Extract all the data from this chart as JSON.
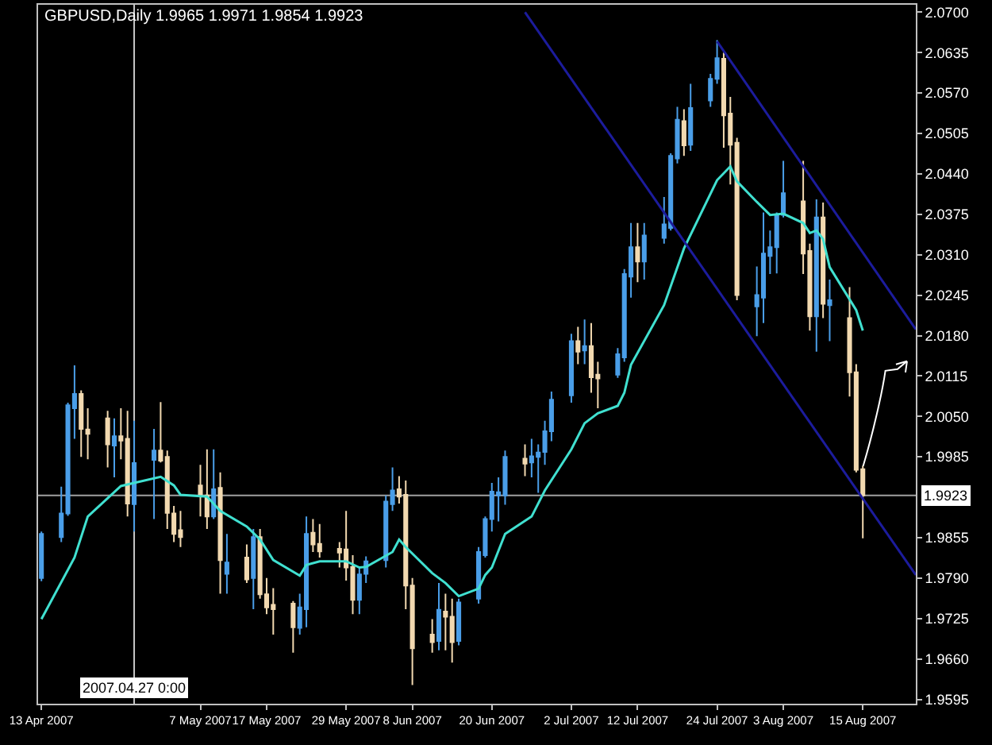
{
  "chart_data": {
    "type": "candlestick",
    "title": "GBPUSD,Daily 1.9965 1.9971 1.9854 1.9923",
    "x": [
      "2007-04-13",
      "2007-04-16",
      "2007-04-17",
      "2007-04-18",
      "2007-04-19",
      "2007-04-20",
      "2007-04-23",
      "2007-04-24",
      "2007-04-25",
      "2007-04-26",
      "2007-04-27",
      "2007-04-30",
      "2007-05-01",
      "2007-05-02",
      "2007-05-03",
      "2007-05-04",
      "2007-05-07",
      "2007-05-08",
      "2007-05-09",
      "2007-05-10",
      "2007-05-11",
      "2007-05-14",
      "2007-05-15",
      "2007-05-16",
      "2007-05-17",
      "2007-05-18",
      "2007-05-21",
      "2007-05-22",
      "2007-05-23",
      "2007-05-24",
      "2007-05-25",
      "2007-05-28",
      "2007-05-29",
      "2007-05-30",
      "2007-05-31",
      "2007-06-01",
      "2007-06-04",
      "2007-06-05",
      "2007-06-06",
      "2007-06-07",
      "2007-06-08",
      "2007-06-11",
      "2007-06-12",
      "2007-06-13",
      "2007-06-14",
      "2007-06-15",
      "2007-06-18",
      "2007-06-19",
      "2007-06-20",
      "2007-06-21",
      "2007-06-22",
      "2007-06-25",
      "2007-06-26",
      "2007-06-27",
      "2007-06-28",
      "2007-06-29",
      "2007-07-02",
      "2007-07-03",
      "2007-07-04",
      "2007-07-05",
      "2007-07-06",
      "2007-07-09",
      "2007-07-10",
      "2007-07-11",
      "2007-07-12",
      "2007-07-13",
      "2007-07-16",
      "2007-07-17",
      "2007-07-18",
      "2007-07-19",
      "2007-07-20",
      "2007-07-23",
      "2007-07-24",
      "2007-07-25",
      "2007-07-26",
      "2007-07-27",
      "2007-07-30",
      "2007-07-31",
      "2007-08-01",
      "2007-08-02",
      "2007-08-03",
      "2007-08-06",
      "2007-08-07",
      "2007-08-08",
      "2007-08-09",
      "2007-08-10",
      "2007-08-13",
      "2007-08-14",
      "2007-08-15"
    ],
    "ohlc": [
      [
        1.979,
        1.9865,
        1.9785,
        1.9861
      ],
      [
        1.9856,
        1.9937,
        1.9848,
        1.9894
      ],
      [
        1.9894,
        2.0072,
        1.989,
        2.0068
      ],
      [
        2.0063,
        2.0132,
        2.0014,
        2.0086
      ],
      [
        2.0086,
        2.0092,
        1.9985,
        2.003
      ],
      [
        2.0029,
        2.0063,
        1.9981,
        2.0022
      ],
      [
        2.0047,
        2.0059,
        1.9968,
        2.0005
      ],
      [
        2.0003,
        2.0047,
        1.9952,
        2.0018
      ],
      [
        2.0018,
        2.0063,
        1.9981,
        2.0011
      ],
      [
        2.0014,
        2.0059,
        1.9889,
        1.991
      ],
      [
        1.9909,
        2.0043,
        1.9865,
        1.9975
      ],
      [
        1.998,
        2.003,
        1.9885,
        1.9995
      ],
      [
        1.9995,
        2.0073,
        1.9976,
        1.9979
      ],
      [
        1.9985,
        1.9995,
        1.9869,
        1.9895
      ],
      [
        1.9894,
        1.9906,
        1.9848,
        1.9861
      ],
      [
        1.9867,
        1.9898,
        1.984,
        1.9856
      ],
      [
        1.9939,
        1.9972,
        1.9889,
        1.9923
      ],
      [
        1.9923,
        1.9997,
        1.9869,
        1.9889
      ],
      [
        1.9889,
        1.9997,
        1.9885,
        1.9933
      ],
      [
        1.9935,
        1.996,
        1.9765,
        1.9819
      ],
      [
        1.9797,
        1.9861,
        1.9765,
        1.9815
      ],
      [
        1.9823,
        1.9844,
        1.9782,
        1.9788
      ],
      [
        1.979,
        1.9869,
        1.974,
        1.9856
      ],
      [
        1.9856,
        1.9869,
        1.9757,
        1.9764
      ],
      [
        1.9764,
        1.979,
        1.9732,
        1.9743
      ],
      [
        1.9747,
        1.9774,
        1.9699,
        1.974
      ],
      [
        1.9749,
        1.9753,
        1.967,
        1.9711
      ],
      [
        1.971,
        1.9765,
        1.9699,
        1.9743
      ],
      [
        1.974,
        1.9889,
        1.9711,
        1.9861
      ],
      [
        1.9863,
        1.9885,
        1.9832,
        1.9844
      ],
      [
        1.9845,
        1.9877,
        1.9823,
        1.9833
      ],
      [
        1.9837,
        1.9848,
        1.9807,
        1.9831
      ],
      [
        1.9836,
        1.9898,
        1.9786,
        1.9807
      ],
      [
        1.9808,
        1.9827,
        1.9732,
        1.9755
      ],
      [
        1.9755,
        1.9807,
        1.9732,
        1.9796
      ],
      [
        1.9797,
        1.9825,
        1.9782,
        1.9817
      ],
      [
        1.9819,
        1.9923,
        1.9807,
        1.9913
      ],
      [
        1.9909,
        1.9968,
        1.9898,
        1.9931
      ],
      [
        1.9933,
        1.9954,
        1.991,
        1.9921
      ],
      [
        1.9924,
        1.9947,
        1.974,
        1.9778
      ],
      [
        1.9778,
        1.979,
        1.9618,
        1.9677
      ],
      [
        1.9699,
        1.9724,
        1.967,
        1.9687
      ],
      [
        1.9689,
        1.9782,
        1.9674,
        1.9739
      ],
      [
        1.9736,
        1.9765,
        1.9674,
        1.9728
      ],
      [
        1.9728,
        1.9757,
        1.9654,
        1.9687
      ],
      [
        1.9689,
        1.9757,
        1.9682,
        1.9751
      ],
      [
        1.9757,
        1.984,
        1.9749,
        1.9832
      ],
      [
        1.9827,
        1.9889,
        1.9823,
        1.9885
      ],
      [
        1.9885,
        1.9943,
        1.9865,
        1.9929
      ],
      [
        1.9923,
        1.9952,
        1.9881,
        1.9928
      ],
      [
        1.9923,
        1.9995,
        1.9908,
        1.9985
      ],
      [
        1.9982,
        2.0005,
        1.9954,
        1.9974
      ],
      [
        1.9976,
        2.0014,
        1.9952,
        1.9986
      ],
      [
        1.9985,
        2.0005,
        1.9927,
        1.9992
      ],
      [
        1.9993,
        2.0043,
        1.9972,
        2.0026
      ],
      [
        2.0026,
        2.009,
        2.001,
        2.0077
      ],
      [
        2.0084,
        2.0183,
        2.0072,
        2.0171
      ],
      [
        2.0171,
        2.0194,
        2.0134,
        2.0154
      ],
      [
        2.0156,
        2.0206,
        2.0134,
        2.0163
      ],
      [
        2.0163,
        2.02,
        2.0088,
        2.0113
      ],
      [
        2.0117,
        2.0138,
        2.0063,
        2.0111
      ],
      [
        2.0117,
        2.016,
        2.0112,
        2.015
      ],
      [
        2.0145,
        2.0287,
        2.0138,
        2.0279
      ],
      [
        2.0275,
        2.0361,
        2.0241,
        2.0322
      ],
      [
        2.0322,
        2.0361,
        2.0266,
        2.0299
      ],
      [
        2.0299,
        2.0361,
        2.027,
        2.0341
      ],
      [
        2.0337,
        2.0403,
        2.0328,
        2.0359
      ],
      [
        2.0353,
        2.0473,
        2.0349,
        2.0469
      ],
      [
        2.0465,
        2.0548,
        2.0457,
        2.0527
      ],
      [
        2.0525,
        2.0544,
        2.0469,
        2.0486
      ],
      [
        2.0487,
        2.0585,
        2.0477,
        2.0546
      ],
      [
        2.0558,
        2.0601,
        2.0548,
        2.0593
      ],
      [
        2.0593,
        2.0655,
        2.0585,
        2.0626
      ],
      [
        2.0625,
        2.0635,
        2.0482,
        2.0534
      ],
      [
        2.0537,
        2.0564,
        2.0423,
        2.0487
      ],
      [
        2.049,
        2.0498,
        2.0237,
        2.0245
      ],
      [
        2.0227,
        2.0291,
        2.0179,
        2.0245
      ],
      [
        2.0241,
        2.0378,
        2.02,
        2.0312
      ],
      [
        2.0308,
        2.0349,
        2.0279,
        2.0322
      ],
      [
        2.0322,
        2.0378,
        2.028,
        2.0374
      ],
      [
        2.0374,
        2.0461,
        2.037,
        2.0409
      ],
      [
        2.0396,
        2.0461,
        2.0279,
        2.0312
      ],
      [
        2.0316,
        2.0328,
        2.0188,
        2.0211
      ],
      [
        2.0211,
        2.0399,
        2.0154,
        2.037
      ],
      [
        2.037,
        2.0394,
        2.0208,
        2.0231
      ],
      [
        2.0229,
        2.027,
        2.0171,
        2.0237
      ],
      [
        2.0208,
        2.0258,
        2.0082,
        2.0121
      ],
      [
        2.0121,
        2.0134,
        1.996,
        1.9964
      ],
      [
        1.9965,
        1.9971,
        1.9854,
        1.9923
      ]
    ],
    "colors": [
      "#4a9ee8",
      "#4a9ee8",
      "#4a9ee8",
      "#4a9ee8",
      "#f2d9b0",
      "#f2d9b0",
      "#f2d9b0",
      "#4a9ee8",
      "#f2d9b0",
      "#f2d9b0",
      "#4a9ee8",
      "#4a9ee8",
      "#f2d9b0",
      "#f2d9b0",
      "#f2d9b0",
      "#f2d9b0",
      "#f2d9b0",
      "#f2d9b0",
      "#4a9ee8",
      "#f2d9b0",
      "#4a9ee8",
      "#f2d9b0",
      "#4a9ee8",
      "#f2d9b0",
      "#f2d9b0",
      "#f2d9b0",
      "#f2d9b0",
      "#4a9ee8",
      "#4a9ee8",
      "#f2d9b0",
      "#f2d9b0",
      "#f2d9b0",
      "#f2d9b0",
      "#f2d9b0",
      "#4a9ee8",
      "#4a9ee8",
      "#4a9ee8",
      "#4a9ee8",
      "#f2d9b0",
      "#f2d9b0",
      "#f2d9b0",
      "#f2d9b0",
      "#4a9ee8",
      "#f2d9b0",
      "#f2d9b0",
      "#4a9ee8",
      "#4a9ee8",
      "#4a9ee8",
      "#4a9ee8",
      "#4a9ee8",
      "#4a9ee8",
      "#f2d9b0",
      "#4a9ee8",
      "#4a9ee8",
      "#4a9ee8",
      "#4a9ee8",
      "#4a9ee8",
      "#f2d9b0",
      "#4a9ee8",
      "#f2d9b0",
      "#f2d9b0",
      "#4a9ee8",
      "#4a9ee8",
      "#4a9ee8",
      "#f2d9b0",
      "#4a9ee8",
      "#4a9ee8",
      "#4a9ee8",
      "#4a9ee8",
      "#f2d9b0",
      "#4a9ee8",
      "#4a9ee8",
      "#4a9ee8",
      "#f2d9b0",
      "#f2d9b0",
      "#f2d9b0",
      "#4a9ee8",
      "#4a9ee8",
      "#4a9ee8",
      "#4a9ee8",
      "#4a9ee8",
      "#f2d9b0",
      "#f2d9b0",
      "#4a9ee8",
      "#f2d9b0",
      "#4a9ee8",
      "#f2d9b0",
      "#f2d9b0",
      "#f2d9b0"
    ],
    "series": [
      {
        "type": "line",
        "color": "#40e0d0",
        "x": [
          "2007-04-13",
          "2007-04-18",
          "2007-04-20",
          "2007-04-25",
          "2007-04-27",
          "2007-05-01",
          "2007-05-03",
          "2007-05-04",
          "2007-05-08",
          "2007-05-10",
          "2007-05-14",
          "2007-05-16",
          "2007-05-18",
          "2007-05-22",
          "2007-05-23",
          "2007-05-25",
          "2007-05-29",
          "2007-05-31",
          "2007-06-01",
          "2007-06-05",
          "2007-06-06",
          "2007-06-07",
          "2007-06-11",
          "2007-06-13",
          "2007-06-15",
          "2007-06-18",
          "2007-06-19",
          "2007-06-20",
          "2007-06-22",
          "2007-06-26",
          "2007-06-28",
          "2007-07-02",
          "2007-07-04",
          "2007-07-06",
          "2007-07-09",
          "2007-07-10",
          "2007-07-11",
          "2007-07-16",
          "2007-07-19",
          "2007-07-24",
          "2007-07-26",
          "2007-07-27",
          "2007-07-30",
          "2007-08-01",
          "2007-08-03",
          "2007-08-06",
          "2007-08-07",
          "2007-08-08",
          "2007-08-09",
          "2007-08-10",
          "2007-08-14",
          "2007-08-15"
        ],
        "values": [
          1.9724,
          1.9823,
          1.9889,
          1.9938,
          1.9943,
          1.9953,
          1.9939,
          1.9924,
          1.9921,
          1.9898,
          1.9873,
          1.9852,
          1.9819,
          1.9794,
          1.9811,
          1.9817,
          1.9817,
          1.9807,
          1.9808,
          1.9832,
          1.9852,
          1.984,
          1.9798,
          1.9782,
          1.9761,
          1.9773,
          1.9795,
          1.9807,
          1.9861,
          1.9889,
          1.9931,
          1.9997,
          2.0039,
          2.0055,
          2.0067,
          2.0088,
          2.0133,
          2.0229,
          2.032,
          2.043,
          2.0452,
          2.0428,
          2.0395,
          2.0374,
          2.0376,
          2.0361,
          2.0345,
          2.0349,
          2.0335,
          2.029,
          2.0221,
          2.0188
        ]
      },
      {
        "type": "line",
        "color": "#1c1c9c",
        "x": [
          "2007-07-24",
          "2007-08-23"
        ],
        "values": [
          2.0653,
          2.019
        ]
      },
      {
        "type": "line",
        "color": "#1c1c9c",
        "x": [
          "2007-06-25",
          "2007-08-23"
        ],
        "values": [
          2.07,
          1.9795
        ]
      }
    ],
    "xlim": [
      "2007-04-12T12:00",
      "2007-08-23T00:00"
    ],
    "xticks": [
      {
        "value": "2007-04-13",
        "label": "13 Apr 2007"
      },
      {
        "value": "2007-05-07",
        "label": "7 May 2007"
      },
      {
        "value": "2007-05-17",
        "label": "17 May 2007"
      },
      {
        "value": "2007-05-29",
        "label": "29 May 2007"
      },
      {
        "value": "2007-06-08",
        "label": "8 Jun 2007"
      },
      {
        "value": "2007-06-20",
        "label": "20 Jun 2007"
      },
      {
        "value": "2007-07-02",
        "label": "2 Jul 2007"
      },
      {
        "value": "2007-07-12",
        "label": "12 Jul 2007"
      },
      {
        "value": "2007-07-24",
        "label": "24 Jul 2007"
      },
      {
        "value": "2007-08-03",
        "label": "3 Aug 2007"
      },
      {
        "value": "2007-08-15",
        "label": "15 Aug 2007"
      }
    ],
    "ylim": [
      1.9588,
      2.0712
    ],
    "yticks": [
      {
        "value": 1.9595,
        "label": "1.9595"
      },
      {
        "value": 1.966,
        "label": "1.9660"
      },
      {
        "value": 1.9725,
        "label": "1.9725"
      },
      {
        "value": 1.979,
        "label": "1.9790"
      },
      {
        "value": 1.9855,
        "label": "1.9855"
      },
      {
        "value": 1.9985,
        "label": "1.9985"
      },
      {
        "value": 2.005,
        "label": "2.0050"
      },
      {
        "value": 2.0115,
        "label": "2.0115"
      },
      {
        "value": 2.018,
        "label": "2.0180"
      },
      {
        "value": 2.0245,
        "label": "2.0245"
      },
      {
        "value": 2.031,
        "label": "2.0310"
      },
      {
        "value": 2.0375,
        "label": "2.0375"
      },
      {
        "value": 2.044,
        "label": "2.0440"
      },
      {
        "value": 2.0505,
        "label": "2.0505"
      },
      {
        "value": 2.057,
        "label": "2.0570"
      },
      {
        "value": 2.0635,
        "label": "2.0635"
      },
      {
        "value": 2.07,
        "label": "2.0700"
      }
    ],
    "ref_lines": [
      {
        "axis": "x",
        "value": "2007-04-27",
        "label": "2007.04.27 0:00",
        "color": "#c8c8c8"
      },
      {
        "axis": "y",
        "value": 1.9923,
        "label": "1.9923",
        "color": "#a0a0a0"
      }
    ]
  }
}
